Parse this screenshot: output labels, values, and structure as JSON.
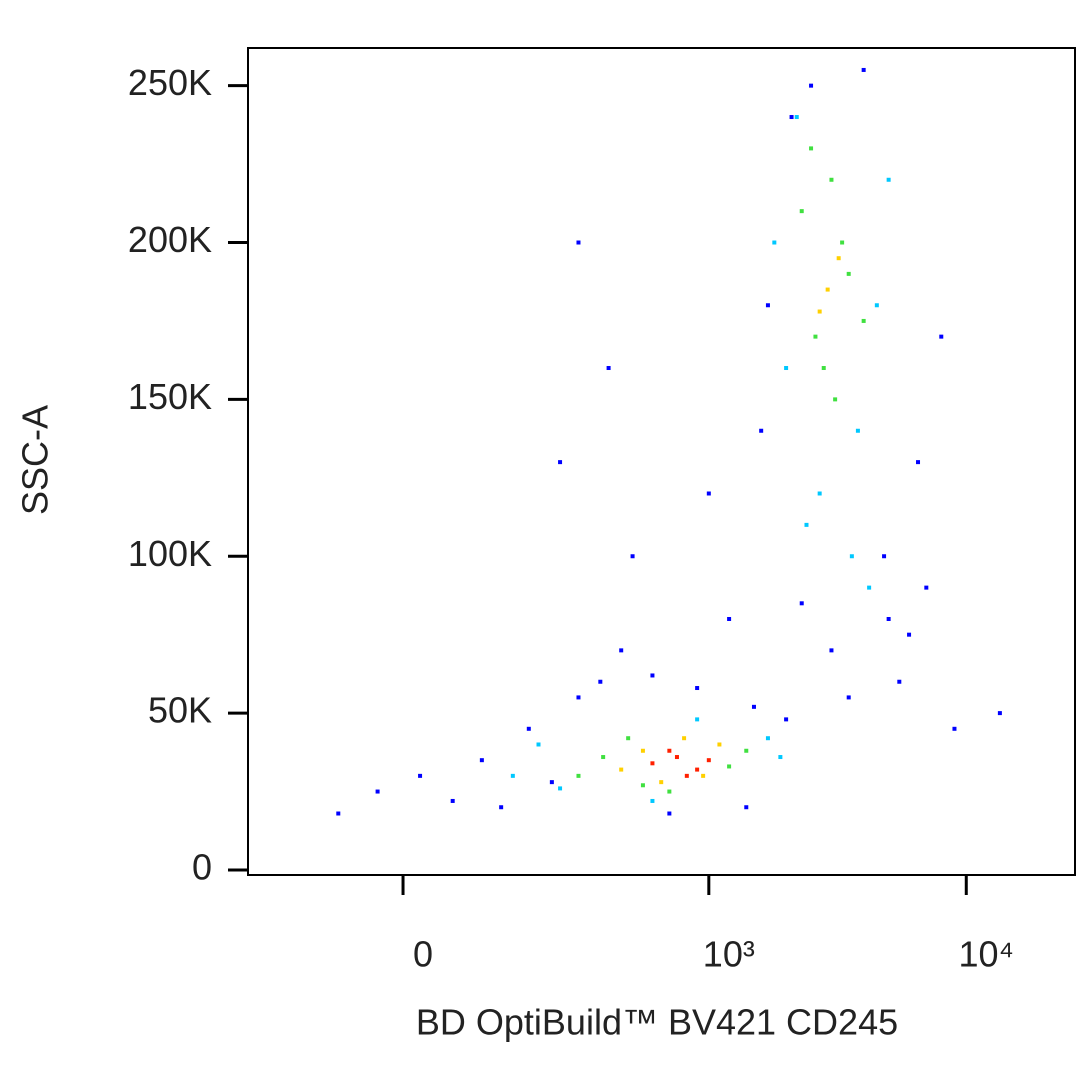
{
  "chart_data": {
    "type": "scatter",
    "xlabel": "BD OptiBuild™ BV421 CD245",
    "ylabel": "SSC-A",
    "x_scale": "biexponential",
    "xlim": [
      -245,
      26400
    ],
    "ylim": [
      -1600,
      262000
    ],
    "xticks": [
      0,
      {
        "value": 1000,
        "label": "10³"
      },
      {
        "value": 10000,
        "label": "10⁴"
      }
    ],
    "yticks": [
      0,
      {
        "value": 50000,
        "label": "50K"
      },
      {
        "value": 100000,
        "label": "100K"
      },
      {
        "value": 150000,
        "label": "150K"
      },
      {
        "value": 200000,
        "label": "200K"
      },
      {
        "value": 250000,
        "label": "250K"
      }
    ],
    "series": [
      {
        "color": "#0000ff",
        "x": [
          -80,
          -30,
          20,
          60,
          100,
          130,
          180,
          230,
          300,
          370,
          450,
          600,
          900,
          1500,
          2000,
          1600,
          1700,
          2100,
          2500,
          4800,
          6000,
          7000,
          5500,
          6500,
          8000,
          4000,
          13500,
          400,
          300,
          250,
          1200,
          2300,
          3000,
          5000,
          3500,
          9000,
          1400,
          700,
          500,
          1000
        ],
        "values": [
          18000,
          25000,
          30000,
          22000,
          35000,
          20000,
          45000,
          28000,
          55000,
          60000,
          70000,
          62000,
          58000,
          52000,
          48000,
          140000,
          180000,
          240000,
          250000,
          100000,
          75000,
          90000,
          60000,
          130000,
          170000,
          255000,
          50000,
          160000,
          200000,
          130000,
          80000,
          85000,
          70000,
          80000,
          55000,
          45000,
          20000,
          18000,
          100000,
          120000
        ]
      },
      {
        "color": "#00c8ff",
        "x": [
          150,
          200,
          1700,
          1900,
          600,
          900,
          250,
          1800,
          2000,
          4500,
          5000,
          2200,
          3800,
          2400,
          3600,
          4200,
          2700
        ],
        "values": [
          30000,
          40000,
          42000,
          36000,
          22000,
          48000,
          26000,
          200000,
          160000,
          180000,
          220000,
          240000,
          140000,
          110000,
          100000,
          90000,
          120000
        ]
      },
      {
        "color": "#40e040",
        "x": [
          300,
          380,
          480,
          1200,
          1400,
          700,
          550,
          2300,
          2600,
          3000,
          3500,
          4000,
          2800,
          3300,
          2500,
          3100
        ],
        "values": [
          30000,
          36000,
          42000,
          33000,
          38000,
          25000,
          27000,
          210000,
          170000,
          220000,
          190000,
          175000,
          160000,
          200000,
          230000,
          150000
        ]
      },
      {
        "color": "#ffd000",
        "x": [
          450,
          550,
          650,
          1100,
          800,
          950,
          2900,
          3200,
          2700
        ],
        "values": [
          32000,
          38000,
          28000,
          40000,
          42000,
          30000,
          185000,
          195000,
          178000
        ]
      },
      {
        "color": "#ff2000",
        "x": [
          600,
          750,
          900,
          1000,
          700,
          820
        ],
        "values": [
          34000,
          36000,
          32000,
          35000,
          38000,
          30000
        ]
      }
    ]
  }
}
